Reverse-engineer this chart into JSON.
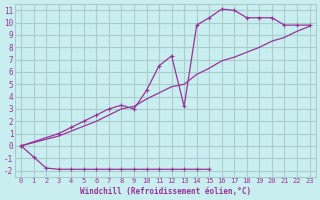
{
  "bg_color": "#c8eef0",
  "grid_color": "#aacccc",
  "line_color": "#993399",
  "xlabel": "Windchill (Refroidissement éolien,°C)",
  "xlim": [
    -0.5,
    23.5
  ],
  "ylim": [
    -2.5,
    11.5
  ],
  "xticks": [
    0,
    1,
    2,
    3,
    4,
    5,
    6,
    7,
    8,
    9,
    10,
    11,
    12,
    13,
    14,
    15,
    16,
    17,
    18,
    19,
    20,
    21,
    22,
    23
  ],
  "yticks": [
    -2,
    -1,
    0,
    1,
    2,
    3,
    4,
    5,
    6,
    7,
    8,
    9,
    10,
    11
  ],
  "line1_x": [
    0,
    1,
    2,
    3,
    4,
    5,
    6,
    7,
    8,
    9,
    10,
    11,
    12,
    13,
    14,
    15
  ],
  "line1_y": [
    0,
    -0.9,
    -1.8,
    -1.9,
    -1.9,
    -1.9,
    -1.9,
    -1.9,
    -1.9,
    -1.9,
    -1.9,
    -1.9,
    -1.9,
    -1.9,
    -1.9,
    -1.9
  ],
  "line2_x": [
    0,
    3,
    4,
    5,
    6,
    7,
    8,
    9,
    10,
    11,
    12,
    13,
    14,
    15,
    16,
    17,
    18,
    19,
    20,
    21,
    22,
    23
  ],
  "line2_y": [
    0,
    1.0,
    1.5,
    2.0,
    2.5,
    3.0,
    3.3,
    3.0,
    4.5,
    6.5,
    7.3,
    3.2,
    9.8,
    10.4,
    11.1,
    11.0,
    10.4,
    10.4,
    10.4,
    9.8,
    9.8,
    9.8
  ],
  "line3_x": [
    0,
    3,
    4,
    5,
    6,
    7,
    8,
    9,
    10,
    11,
    12,
    13,
    14,
    15,
    16,
    17,
    18,
    19,
    20,
    21,
    22,
    23
  ],
  "line3_y": [
    0,
    0.8,
    1.2,
    1.6,
    2.0,
    2.5,
    3.0,
    3.2,
    3.8,
    4.3,
    4.8,
    5.0,
    5.8,
    6.3,
    6.9,
    7.2,
    7.6,
    8.0,
    8.5,
    8.8,
    9.3,
    9.7
  ]
}
